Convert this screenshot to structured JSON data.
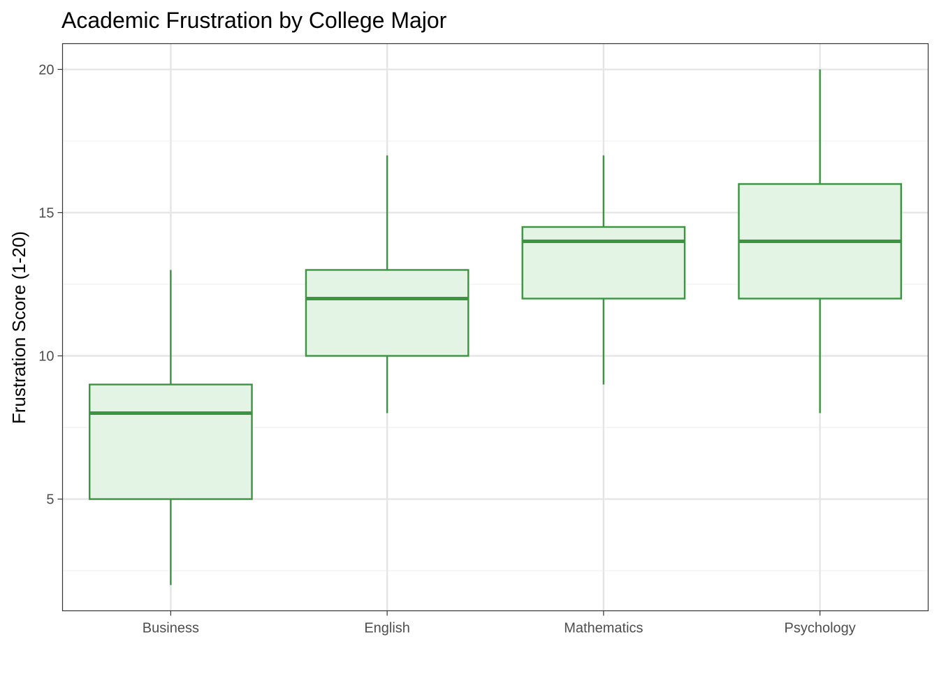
{
  "chart_data": {
    "type": "boxplot",
    "title": "Academic Frustration by College Major",
    "xlabel": "",
    "ylabel": "Frustration Score (1-20)",
    "ylim": [
      1.1,
      20.9
    ],
    "yticks": [
      5,
      10,
      15,
      20
    ],
    "grid": true,
    "legend": "none",
    "categories": [
      "Business",
      "English",
      "Mathematics",
      "Psychology"
    ],
    "boxes": [
      {
        "category": "Business",
        "min": 2,
        "q1": 5,
        "median": 8,
        "q3": 9,
        "max": 13
      },
      {
        "category": "English",
        "min": 8,
        "q1": 10,
        "median": 12,
        "q3": 13,
        "max": 17
      },
      {
        "category": "Mathematics",
        "min": 9,
        "q1": 12,
        "median": 14,
        "q3": 14.5,
        "max": 17
      },
      {
        "category": "Psychology",
        "min": 8,
        "q1": 12,
        "median": 14,
        "q3": 16,
        "max": 20
      }
    ],
    "colors": {
      "box_stroke": "#3a9440",
      "box_fill": "#e3f3e4",
      "grid_major": "#e5e5e5",
      "grid_minor": "#f0f0f0",
      "panel_border": "#333333",
      "tick_label": "#4d4d4d"
    }
  }
}
